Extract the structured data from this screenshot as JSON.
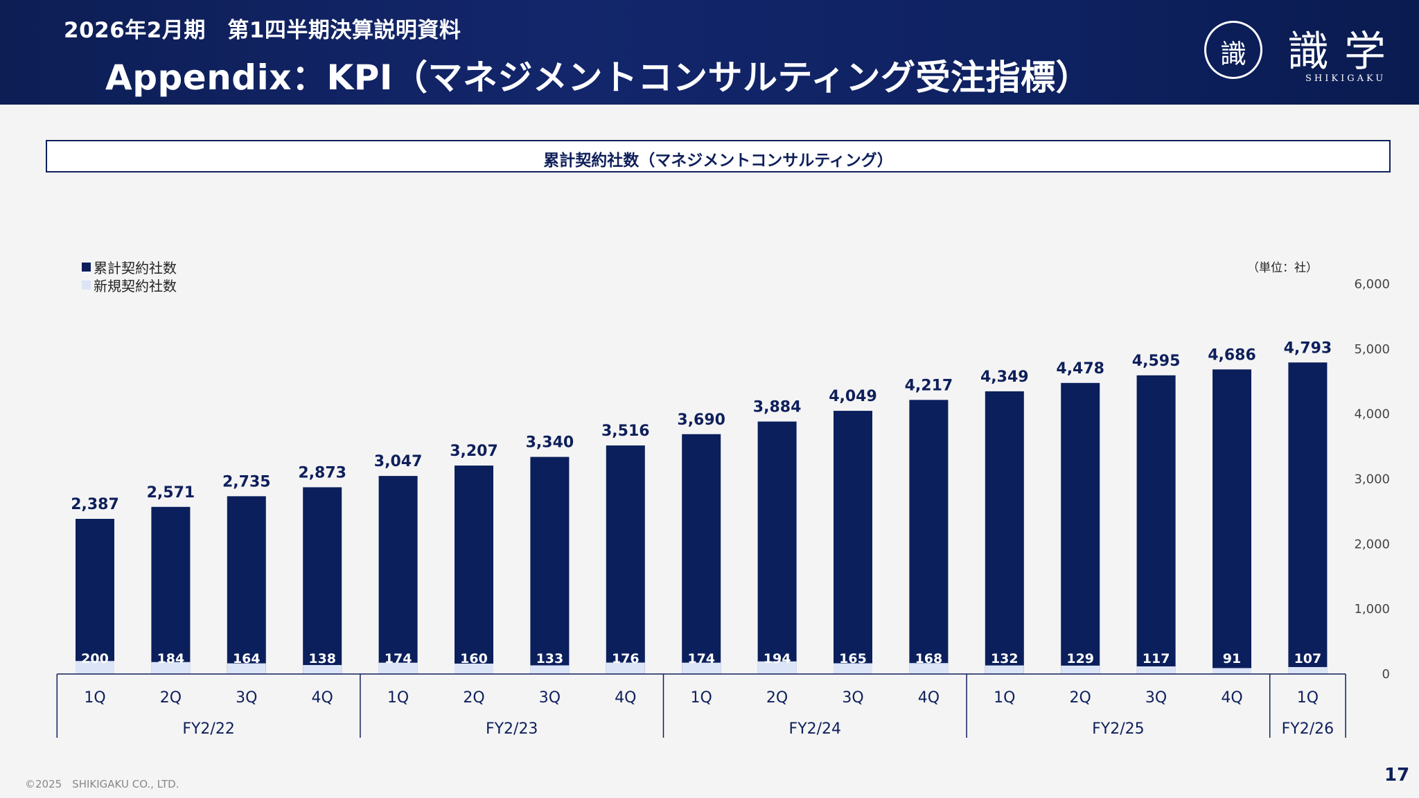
{
  "header": {
    "subtitle": "2026年2月期　第1四半期決算説明資料",
    "title": "Appendix：KPI（マネジメントコンサルティング受注指標）"
  },
  "logo": {
    "seal_text": "識",
    "kanji": "識学",
    "roman": "SHIKIGAKU"
  },
  "section_title": "累計契約社数（マネジメントコンサルティング）",
  "legend": [
    {
      "label": "累計契約社数",
      "color": "#0b1f5c"
    },
    {
      "label": "新規契約社数",
      "color": "#dce4f7"
    }
  ],
  "unit_label": "（単位：社）",
  "footer": {
    "copyright": "©2025　SHIKIGAKU CO., LTD.",
    "page": "17"
  },
  "chart_data": {
    "type": "bar",
    "categories": [
      "1Q",
      "2Q",
      "3Q",
      "4Q",
      "1Q",
      "2Q",
      "3Q",
      "4Q",
      "1Q",
      "2Q",
      "3Q",
      "4Q",
      "1Q",
      "2Q",
      "3Q",
      "4Q",
      "1Q"
    ],
    "groups": [
      {
        "label": "FY2/22",
        "count": 4
      },
      {
        "label": "FY2/23",
        "count": 4
      },
      {
        "label": "FY2/24",
        "count": 4
      },
      {
        "label": "FY2/25",
        "count": 4
      },
      {
        "label": "FY2/26",
        "count": 1
      }
    ],
    "series": [
      {
        "name": "累計契約社数",
        "color": "#0b1f5c",
        "values": [
          2387,
          2571,
          2735,
          2873,
          3047,
          3207,
          3340,
          3516,
          3690,
          3884,
          4049,
          4217,
          4349,
          4478,
          4595,
          4686,
          4793
        ]
      },
      {
        "name": "新規契約社数",
        "color": "#dce4f7",
        "values": [
          200,
          184,
          164,
          138,
          174,
          160,
          133,
          176,
          174,
          194,
          165,
          168,
          132,
          129,
          117,
          91,
          107
        ]
      }
    ],
    "value_labels_cumulative": [
      "2,387",
      "2,571",
      "2,735",
      "2,873",
      "3,047",
      "3,207",
      "3,340",
      "3,516",
      "3,690",
      "3,884",
      "4,049",
      "4,217",
      "4,349",
      "4,478",
      "4,595",
      "4,686",
      "4,793"
    ],
    "value_labels_new": [
      "200",
      "184",
      "164",
      "138",
      "174",
      "160",
      "133",
      "176",
      "174",
      "194",
      "165",
      "168",
      "132",
      "129",
      "117",
      "91",
      "107"
    ],
    "y_ticks": [
      "0",
      "1,000",
      "2,000",
      "3,000",
      "4,000",
      "5,000",
      "6,000"
    ],
    "ylim": [
      0,
      6000
    ],
    "y_axis_side": "right",
    "grid": false
  }
}
